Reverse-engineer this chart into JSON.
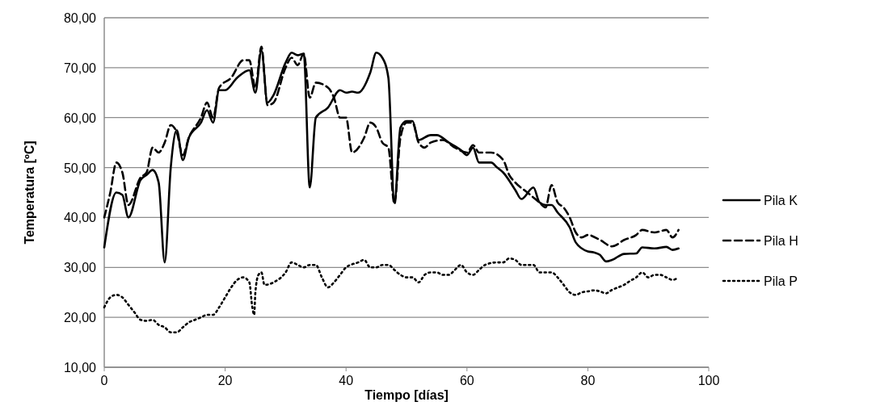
{
  "chart_data": {
    "type": "line",
    "xlabel": "Tiempo [días]",
    "ylabel": "Temperatura [ºC]",
    "xlim": [
      0,
      100
    ],
    "xticks": [
      0,
      20,
      40,
      60,
      80,
      100
    ],
    "ylim": [
      10,
      80
    ],
    "yticks": [
      {
        "value": 10,
        "label": "10,00"
      },
      {
        "value": 20,
        "label": "20,00"
      },
      {
        "value": 30,
        "label": "30,00"
      },
      {
        "value": 40,
        "label": "40,00"
      },
      {
        "value": 50,
        "label": "50,00"
      },
      {
        "value": 60,
        "label": "60,00"
      },
      {
        "value": 70,
        "label": "70,00"
      },
      {
        "value": 80,
        "label": "80,00"
      }
    ],
    "grid": "y",
    "legend": "right",
    "marker": "none",
    "series": [
      {
        "name": "Pila K",
        "color": "#000000",
        "line_style": "solid",
        "x": [
          0,
          2,
          3,
          4,
          6,
          7,
          8,
          9,
          10,
          11,
          12,
          13,
          14,
          16,
          17,
          18,
          19,
          20,
          22,
          24,
          25,
          26,
          27,
          28,
          30,
          31,
          32,
          33,
          34,
          35,
          37,
          39,
          40,
          41,
          42,
          44,
          45,
          46,
          47,
          48,
          49,
          50,
          51,
          52,
          54,
          55,
          57,
          59,
          60,
          61,
          62,
          64,
          65,
          66,
          68,
          69,
          71,
          72,
          73,
          74,
          75,
          77,
          78,
          80,
          81,
          82,
          83,
          84,
          86,
          88,
          89,
          91,
          93,
          94,
          95
        ],
        "values": [
          34,
          45,
          44.5,
          40,
          47.5,
          48.5,
          49.5,
          47,
          31,
          50,
          57.5,
          51.5,
          56,
          59,
          61.5,
          59,
          65.5,
          65.5,
          68,
          69.5,
          65,
          73.5,
          63,
          64.5,
          71,
          73,
          72.5,
          72.8,
          46,
          60,
          62,
          65.5,
          65,
          65.2,
          65,
          69,
          73,
          72,
          68,
          43,
          58,
          59.3,
          59.3,
          55.5,
          56.5,
          56.5,
          55,
          53.5,
          52.5,
          54,
          51,
          51,
          50,
          49,
          45.5,
          43.7,
          46,
          43,
          42.5,
          42.5,
          41,
          38,
          35,
          33.2,
          33,
          32.5,
          31.2,
          31.5,
          32.7,
          32.8,
          34,
          33.8,
          34.1,
          33.5,
          33.8
        ]
      },
      {
        "name": "Pila H",
        "color": "#000000",
        "line_style": "dashed",
        "x": [
          0,
          1,
          2,
          3,
          4,
          6,
          7,
          8,
          9,
          10,
          11,
          12,
          13,
          14,
          16,
          17,
          18,
          19,
          21,
          23,
          24,
          25,
          26,
          27,
          28,
          30,
          31,
          32,
          33,
          34,
          35,
          37,
          38,
          39,
          40,
          41,
          43,
          44,
          45,
          46,
          47,
          48,
          49,
          50,
          51,
          52,
          53,
          54,
          56,
          58,
          60,
          61,
          62,
          64,
          66,
          67,
          68,
          70,
          71,
          72,
          73,
          74,
          75,
          76,
          77,
          78,
          79,
          80,
          82,
          84,
          86,
          88,
          89,
          91,
          93,
          94,
          95
        ],
        "values": [
          40,
          45,
          51,
          49,
          42.5,
          48,
          49,
          54,
          53,
          55,
          58.5,
          57,
          52.5,
          56,
          60,
          63,
          60,
          66,
          68,
          71.5,
          71.5,
          66,
          74.2,
          62.5,
          63,
          70,
          72,
          70.5,
          72.8,
          64,
          67,
          66,
          64,
          60,
          60,
          53,
          56,
          59,
          58,
          55,
          54,
          42.7,
          56,
          59,
          59,
          55,
          54,
          55,
          55.5,
          54,
          53,
          54.5,
          53,
          53,
          51.5,
          48.5,
          47,
          45,
          44,
          43,
          42,
          46.5,
          43,
          42,
          40,
          37,
          36,
          36.5,
          35.5,
          34.2,
          35.5,
          36.5,
          37.5,
          37,
          37.5,
          36,
          37.5
        ]
      },
      {
        "name": "Pila P",
        "color": "#000000",
        "line_style": "dotted",
        "x": [
          0,
          1,
          2,
          3,
          4,
          5,
          6,
          7,
          8,
          9,
          10,
          11,
          12,
          13,
          14,
          15,
          16,
          17,
          18,
          19,
          20,
          21,
          22,
          23,
          24,
          24.5,
          24.8,
          25,
          25.5,
          26,
          26.5,
          28,
          30,
          31,
          32,
          33,
          34,
          35,
          36,
          37,
          38,
          39,
          40,
          42,
          43,
          44,
          45,
          46,
          47,
          48,
          49,
          50,
          51,
          52,
          53,
          54,
          55,
          56,
          57,
          58,
          59,
          60,
          61,
          62,
          63,
          65,
          66,
          67,
          68,
          69,
          70,
          71,
          72,
          73,
          74,
          75,
          76,
          77,
          78,
          79,
          80,
          81,
          82,
          83,
          84,
          85,
          86,
          87,
          88,
          89,
          90,
          91,
          92,
          93,
          94,
          95
        ],
        "values": [
          22,
          24,
          24.5,
          24,
          22.5,
          21,
          19.5,
          19.3,
          19.5,
          18.5,
          18,
          17,
          17,
          18,
          19,
          19.5,
          20,
          20.5,
          20.5,
          22,
          24,
          26,
          27.5,
          28,
          27,
          22,
          20.5,
          25,
          28.5,
          29,
          26.5,
          27,
          29,
          31,
          30.5,
          30,
          30.5,
          30.5,
          28,
          26,
          27,
          28.5,
          30,
          31,
          31.5,
          30,
          30,
          30.5,
          30.5,
          29.5,
          28.5,
          28,
          28,
          27,
          28.5,
          29,
          29,
          28.5,
          28.5,
          29.5,
          30.5,
          29,
          28.5,
          29.5,
          30.5,
          31,
          31,
          31.8,
          31.5,
          30.5,
          30.5,
          30.5,
          29,
          29,
          29,
          28,
          26.5,
          25,
          24.5,
          25,
          25.2,
          25.4,
          25.2,
          24.8,
          25.5,
          26,
          26.5,
          27.3,
          28,
          29,
          28,
          28.5,
          28.5,
          28,
          27.5,
          28
        ]
      }
    ]
  }
}
